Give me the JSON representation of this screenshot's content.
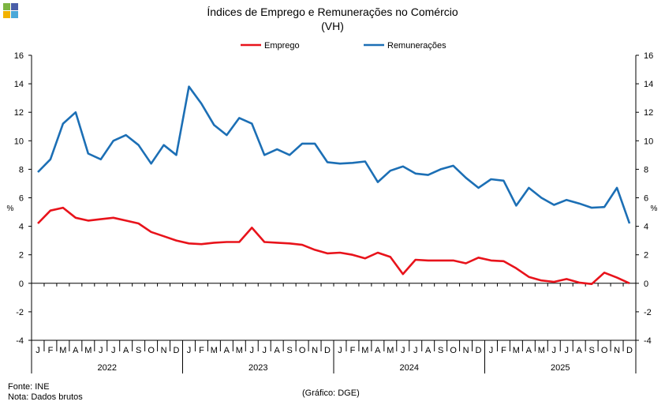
{
  "logo_colors": [
    "#7db542",
    "#4a5ea8",
    "#f2b200",
    "#4aa8d8"
  ],
  "chart_data": {
    "type": "line",
    "title": "Índices de Emprego e Remunerações no Comércio",
    "subtitle": "(VH)",
    "ylabel_left": "%",
    "ylabel_right": "%",
    "ylim": [
      -4,
      16
    ],
    "yticks": [
      "-4",
      "-2",
      "0",
      "2",
      "4",
      "6",
      "8",
      "10",
      "12",
      "14",
      "16"
    ],
    "grid": false,
    "legend_position": "top-center",
    "months": [
      "J",
      "F",
      "M",
      "A",
      "M",
      "J",
      "J",
      "A",
      "S",
      "O",
      "N",
      "D",
      "J",
      "F",
      "M",
      "A",
      "M",
      "J",
      "J",
      "A",
      "S",
      "O",
      "N",
      "D",
      "J",
      "F",
      "M",
      "A",
      "M",
      "J",
      "J",
      "A",
      "S",
      "O",
      "N",
      "D",
      "J",
      "F",
      "M",
      "A",
      "M",
      "J",
      "J",
      "A",
      "S",
      "O",
      "N",
      "D"
    ],
    "years": [
      "2022",
      "2023",
      "2024",
      "2025"
    ],
    "series": [
      {
        "name": "Emprego",
        "color": "#e8131b",
        "values": [
          4.2,
          5.1,
          5.3,
          4.6,
          4.4,
          4.5,
          4.6,
          4.4,
          4.2,
          3.6,
          3.3,
          3.0,
          2.8,
          2.75,
          2.85,
          2.9,
          2.9,
          3.9,
          2.9,
          2.85,
          2.8,
          2.7,
          2.35,
          2.1,
          2.15,
          2.0,
          1.75,
          2.15,
          1.85,
          0.65,
          1.65,
          1.6,
          1.6,
          1.6,
          1.4,
          1.8,
          1.6,
          1.55,
          1.05,
          0.45,
          0.2,
          0.1,
          0.3,
          0.05,
          -0.05,
          0.75,
          0.4,
          0.0
        ]
      },
      {
        "name": "Remunerações",
        "color": "#1c6fb5",
        "values": [
          7.8,
          8.7,
          11.2,
          12.0,
          9.1,
          8.7,
          10.0,
          10.4,
          9.7,
          8.4,
          9.7,
          9.0,
          13.8,
          12.6,
          11.1,
          10.4,
          11.6,
          11.2,
          9.0,
          9.4,
          9.0,
          9.8,
          9.8,
          8.5,
          8.4,
          8.45,
          8.55,
          7.1,
          7.9,
          8.2,
          7.7,
          7.6,
          8.0,
          8.25,
          7.4,
          6.7,
          7.3,
          7.2,
          5.45,
          6.7,
          6.0,
          5.5,
          5.85,
          5.6,
          5.3,
          5.35,
          6.7,
          4.2
        ]
      }
    ]
  },
  "footer": {
    "source": "Fonte: INE",
    "note": "Nota: Dados brutos",
    "credit": "(Gráfico: DGE)"
  }
}
